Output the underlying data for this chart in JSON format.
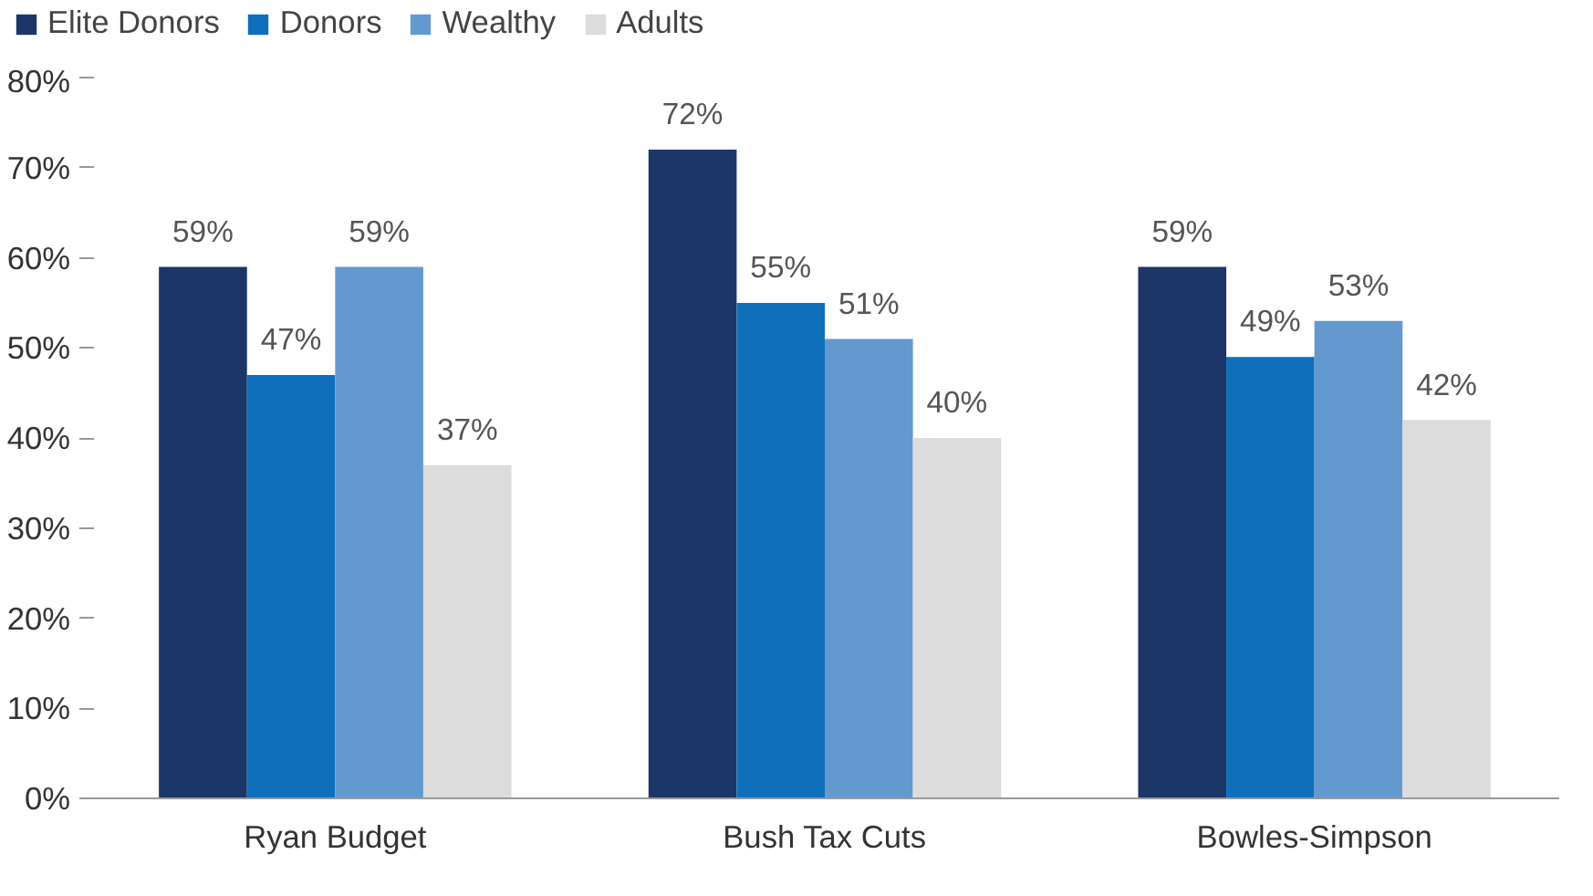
{
  "chart_data": {
    "type": "bar",
    "categories": [
      "Ryan Budget",
      "Bush Tax Cuts",
      "Bowles-Simpson"
    ],
    "series": [
      {
        "name": "Elite Donors",
        "color": "#1b3667",
        "values": [
          59,
          72,
          59
        ],
        "value_labels": [
          "59%",
          "72%",
          "59%"
        ]
      },
      {
        "name": "Donors",
        "color": "#0f6fba",
        "values": [
          47,
          55,
          49
        ],
        "value_labels": [
          "47%",
          "55%",
          "49%"
        ]
      },
      {
        "name": "Wealthy",
        "color": "#6399cf",
        "values": [
          59,
          51,
          53
        ],
        "value_labels": [
          "59%",
          "51%",
          "53%"
        ]
      },
      {
        "name": "Adults",
        "color": "#dcdcdc",
        "values": [
          37,
          40,
          42
        ],
        "value_labels": [
          "37%",
          "40%",
          "42%"
        ]
      }
    ],
    "ylim": [
      0,
      80
    ],
    "yticks": [
      {
        "value": 0,
        "label": "0%"
      },
      {
        "value": 10,
        "label": "10%"
      },
      {
        "value": 20,
        "label": "20%"
      },
      {
        "value": 30,
        "label": "30%"
      },
      {
        "value": 40,
        "label": "40%"
      },
      {
        "value": 50,
        "label": "50%"
      },
      {
        "value": 60,
        "label": "60%"
      },
      {
        "value": 70,
        "label": "70%"
      },
      {
        "value": 80,
        "label": "80%"
      }
    ],
    "grid": false,
    "legend": "top left"
  }
}
